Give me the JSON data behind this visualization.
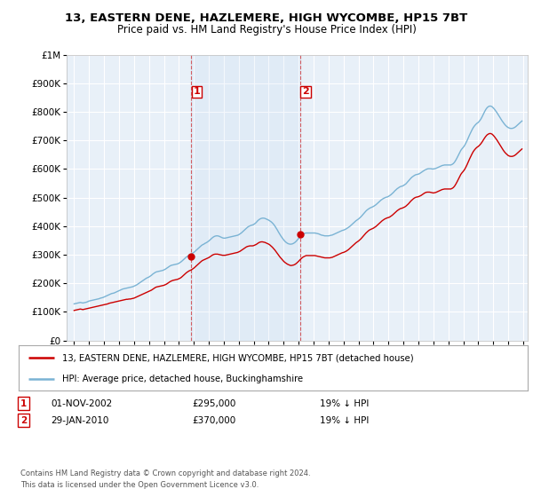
{
  "title": "13, EASTERN DENE, HAZLEMERE, HIGH WYCOMBE, HP15 7BT",
  "subtitle": "Price paid vs. HM Land Registry's House Price Index (HPI)",
  "legend_line1": "13, EASTERN DENE, HAZLEMERE, HIGH WYCOMBE, HP15 7BT (detached house)",
  "legend_line2": "HPI: Average price, detached house, Buckinghamshire",
  "footnote1": "Contains HM Land Registry data © Crown copyright and database right 2024.",
  "footnote2": "This data is licensed under the Open Government Licence v3.0.",
  "transaction1_date": "01-NOV-2002",
  "transaction1_price": "£295,000",
  "transaction1_hpi": "19% ↓ HPI",
  "transaction2_date": "29-JAN-2010",
  "transaction2_price": "£370,000",
  "transaction2_hpi": "19% ↓ HPI",
  "hpi_color": "#7ab3d4",
  "price_color": "#cc0000",
  "vline_color": "#cc0000",
  "background_color": "#ffffff",
  "plot_bg_color": "#e8f0f8",
  "grid_color": "#ffffff",
  "transaction1_year": 2002.833,
  "transaction2_year": 2010.083,
  "transaction1_price_val": 295000,
  "transaction2_price_val": 370000,
  "hpi_x": [
    1995.0,
    1995.083,
    1995.167,
    1995.25,
    1995.333,
    1995.417,
    1995.5,
    1995.583,
    1995.667,
    1995.75,
    1995.833,
    1995.917,
    1996.0,
    1996.083,
    1996.167,
    1996.25,
    1996.333,
    1996.417,
    1996.5,
    1996.583,
    1996.667,
    1996.75,
    1996.833,
    1996.917,
    1997.0,
    1997.083,
    1997.167,
    1997.25,
    1997.333,
    1997.417,
    1997.5,
    1997.583,
    1997.667,
    1997.75,
    1997.833,
    1997.917,
    1998.0,
    1998.083,
    1998.167,
    1998.25,
    1998.333,
    1998.417,
    1998.5,
    1998.583,
    1998.667,
    1998.75,
    1998.833,
    1998.917,
    1999.0,
    1999.083,
    1999.167,
    1999.25,
    1999.333,
    1999.417,
    1999.5,
    1999.583,
    1999.667,
    1999.75,
    1999.833,
    1999.917,
    2000.0,
    2000.083,
    2000.167,
    2000.25,
    2000.333,
    2000.417,
    2000.5,
    2000.583,
    2000.667,
    2000.75,
    2000.833,
    2000.917,
    2001.0,
    2001.083,
    2001.167,
    2001.25,
    2001.333,
    2001.417,
    2001.5,
    2001.583,
    2001.667,
    2001.75,
    2001.833,
    2001.917,
    2002.0,
    2002.083,
    2002.167,
    2002.25,
    2002.333,
    2002.417,
    2002.5,
    2002.583,
    2002.667,
    2002.75,
    2002.833,
    2002.917,
    2003.0,
    2003.083,
    2003.167,
    2003.25,
    2003.333,
    2003.417,
    2003.5,
    2003.583,
    2003.667,
    2003.75,
    2003.833,
    2003.917,
    2004.0,
    2004.083,
    2004.167,
    2004.25,
    2004.333,
    2004.417,
    2004.5,
    2004.583,
    2004.667,
    2004.75,
    2004.833,
    2004.917,
    2005.0,
    2005.083,
    2005.167,
    2005.25,
    2005.333,
    2005.417,
    2005.5,
    2005.583,
    2005.667,
    2005.75,
    2005.833,
    2005.917,
    2006.0,
    2006.083,
    2006.167,
    2006.25,
    2006.333,
    2006.417,
    2006.5,
    2006.583,
    2006.667,
    2006.75,
    2006.833,
    2006.917,
    2007.0,
    2007.083,
    2007.167,
    2007.25,
    2007.333,
    2007.417,
    2007.5,
    2007.583,
    2007.667,
    2007.75,
    2007.833,
    2007.917,
    2008.0,
    2008.083,
    2008.167,
    2008.25,
    2008.333,
    2008.417,
    2008.5,
    2008.583,
    2008.667,
    2008.75,
    2008.833,
    2008.917,
    2009.0,
    2009.083,
    2009.167,
    2009.25,
    2009.333,
    2009.417,
    2009.5,
    2009.583,
    2009.667,
    2009.75,
    2009.833,
    2009.917,
    2010.0,
    2010.083,
    2010.167,
    2010.25,
    2010.333,
    2010.417,
    2010.5,
    2010.583,
    2010.667,
    2010.75,
    2010.833,
    2010.917,
    2011.0,
    2011.083,
    2011.167,
    2011.25,
    2011.333,
    2011.417,
    2011.5,
    2011.583,
    2011.667,
    2011.75,
    2011.833,
    2011.917,
    2012.0,
    2012.083,
    2012.167,
    2012.25,
    2012.333,
    2012.417,
    2012.5,
    2012.583,
    2012.667,
    2012.75,
    2012.833,
    2012.917,
    2013.0,
    2013.083,
    2013.167,
    2013.25,
    2013.333,
    2013.417,
    2013.5,
    2013.583,
    2013.667,
    2013.75,
    2013.833,
    2013.917,
    2014.0,
    2014.083,
    2014.167,
    2014.25,
    2014.333,
    2014.417,
    2014.5,
    2014.583,
    2014.667,
    2014.75,
    2014.833,
    2014.917,
    2015.0,
    2015.083,
    2015.167,
    2015.25,
    2015.333,
    2015.417,
    2015.5,
    2015.583,
    2015.667,
    2015.75,
    2015.833,
    2015.917,
    2016.0,
    2016.083,
    2016.167,
    2016.25,
    2016.333,
    2016.417,
    2016.5,
    2016.583,
    2016.667,
    2016.75,
    2016.833,
    2016.917,
    2017.0,
    2017.083,
    2017.167,
    2017.25,
    2017.333,
    2017.417,
    2017.5,
    2017.583,
    2017.667,
    2017.75,
    2017.833,
    2017.917,
    2018.0,
    2018.083,
    2018.167,
    2018.25,
    2018.333,
    2018.417,
    2018.5,
    2018.583,
    2018.667,
    2018.75,
    2018.833,
    2018.917,
    2019.0,
    2019.083,
    2019.167,
    2019.25,
    2019.333,
    2019.417,
    2019.5,
    2019.583,
    2019.667,
    2019.75,
    2019.833,
    2019.917,
    2020.0,
    2020.083,
    2020.167,
    2020.25,
    2020.333,
    2020.417,
    2020.5,
    2020.583,
    2020.667,
    2020.75,
    2020.833,
    2020.917,
    2021.0,
    2021.083,
    2021.167,
    2021.25,
    2021.333,
    2021.417,
    2021.5,
    2021.583,
    2021.667,
    2021.75,
    2021.833,
    2021.917,
    2022.0,
    2022.083,
    2022.167,
    2022.25,
    2022.333,
    2022.417,
    2022.5,
    2022.583,
    2022.667,
    2022.75,
    2022.833,
    2022.917,
    2023.0,
    2023.083,
    2023.167,
    2023.25,
    2023.333,
    2023.417,
    2023.5,
    2023.583,
    2023.667,
    2023.75,
    2023.833,
    2023.917,
    2024.0,
    2024.083,
    2024.167,
    2024.25,
    2024.333,
    2024.417,
    2024.5,
    2024.583,
    2024.667,
    2024.75,
    2024.833,
    2024.917
  ],
  "hpi_y": [
    128000,
    129000,
    130000,
    131000,
    132000,
    133000,
    132000,
    131000,
    132000,
    133000,
    134000,
    136000,
    138000,
    139000,
    140000,
    141000,
    142000,
    143000,
    144000,
    145000,
    146000,
    148000,
    149000,
    150000,
    152000,
    154000,
    156000,
    158000,
    160000,
    162000,
    164000,
    165000,
    166000,
    168000,
    170000,
    172000,
    174000,
    176000,
    178000,
    180000,
    181000,
    182000,
    183000,
    184000,
    185000,
    186000,
    187000,
    188000,
    190000,
    192000,
    194000,
    197000,
    200000,
    203000,
    206000,
    209000,
    212000,
    215000,
    218000,
    220000,
    222000,
    225000,
    228000,
    232000,
    235000,
    238000,
    240000,
    241000,
    242000,
    243000,
    244000,
    245000,
    247000,
    249000,
    252000,
    255000,
    258000,
    261000,
    263000,
    264000,
    265000,
    266000,
    267000,
    268000,
    270000,
    273000,
    276000,
    280000,
    284000,
    288000,
    292000,
    295000,
    298000,
    300000,
    302000,
    305000,
    308000,
    312000,
    316000,
    320000,
    324000,
    328000,
    332000,
    335000,
    337000,
    340000,
    342000,
    345000,
    348000,
    352000,
    356000,
    360000,
    363000,
    365000,
    366000,
    366000,
    365000,
    363000,
    361000,
    359000,
    358000,
    358000,
    359000,
    360000,
    361000,
    362000,
    363000,
    364000,
    365000,
    366000,
    367000,
    368000,
    370000,
    373000,
    376000,
    380000,
    384000,
    388000,
    392000,
    396000,
    399000,
    401000,
    403000,
    404000,
    406000,
    409000,
    413000,
    418000,
    422000,
    425000,
    427000,
    428000,
    428000,
    427000,
    425000,
    423000,
    421000,
    418000,
    415000,
    411000,
    406000,
    400000,
    393000,
    386000,
    378000,
    371000,
    364000,
    358000,
    352000,
    347000,
    343000,
    340000,
    338000,
    337000,
    337000,
    338000,
    340000,
    343000,
    347000,
    352000,
    357000,
    362000,
    366000,
    370000,
    373000,
    375000,
    376000,
    376000,
    376000,
    376000,
    376000,
    376000,
    376000,
    376000,
    375000,
    374000,
    373000,
    371000,
    369000,
    368000,
    367000,
    366000,
    366000,
    366000,
    366000,
    367000,
    368000,
    369000,
    371000,
    373000,
    375000,
    377000,
    379000,
    381000,
    383000,
    385000,
    386000,
    388000,
    390000,
    393000,
    396000,
    399000,
    403000,
    407000,
    411000,
    415000,
    419000,
    422000,
    425000,
    429000,
    433000,
    438000,
    443000,
    448000,
    453000,
    457000,
    460000,
    463000,
    465000,
    467000,
    469000,
    472000,
    475000,
    479000,
    483000,
    487000,
    491000,
    494000,
    497000,
    499000,
    501000,
    502000,
    504000,
    507000,
    510000,
    514000,
    518000,
    523000,
    527000,
    531000,
    534000,
    537000,
    539000,
    540000,
    542000,
    545000,
    548000,
    553000,
    558000,
    563000,
    568000,
    572000,
    575000,
    578000,
    580000,
    581000,
    582000,
    584000,
    587000,
    590000,
    593000,
    596000,
    598000,
    600000,
    601000,
    601000,
    601000,
    600000,
    600000,
    601000,
    602000,
    604000,
    606000,
    608000,
    610000,
    612000,
    613000,
    614000,
    614000,
    614000,
    614000,
    614000,
    614000,
    616000,
    619000,
    624000,
    631000,
    639000,
    648000,
    657000,
    665000,
    671000,
    676000,
    682000,
    690000,
    699000,
    709000,
    719000,
    728000,
    737000,
    745000,
    751000,
    756000,
    760000,
    763000,
    768000,
    774000,
    782000,
    791000,
    800000,
    808000,
    814000,
    818000,
    820000,
    820000,
    818000,
    814000,
    809000,
    803000,
    797000,
    790000,
    783000,
    776000,
    769000,
    763000,
    757000,
    752000,
    748000,
    745000,
    743000,
    742000,
    742000,
    743000,
    745000,
    748000,
    752000,
    756000,
    760000,
    764000,
    768000
  ],
  "price_x": [
    1995.0,
    1995.083,
    1995.167,
    1995.25,
    1995.333,
    1995.417,
    1995.5,
    1995.583,
    1995.667,
    1995.75,
    1995.833,
    1995.917,
    1996.0,
    1996.083,
    1996.167,
    1996.25,
    1996.333,
    1996.417,
    1996.5,
    1996.583,
    1996.667,
    1996.75,
    1996.833,
    1996.917,
    1997.0,
    1997.083,
    1997.167,
    1997.25,
    1997.333,
    1997.417,
    1997.5,
    1997.583,
    1997.667,
    1997.75,
    1997.833,
    1997.917,
    1998.0,
    1998.083,
    1998.167,
    1998.25,
    1998.333,
    1998.417,
    1998.5,
    1998.583,
    1998.667,
    1998.75,
    1998.833,
    1998.917,
    1999.0,
    1999.083,
    1999.167,
    1999.25,
    1999.333,
    1999.417,
    1999.5,
    1999.583,
    1999.667,
    1999.75,
    1999.833,
    1999.917,
    2000.0,
    2000.083,
    2000.167,
    2000.25,
    2000.333,
    2000.417,
    2000.5,
    2000.583,
    2000.667,
    2000.75,
    2000.833,
    2000.917,
    2001.0,
    2001.083,
    2001.167,
    2001.25,
    2001.333,
    2001.417,
    2001.5,
    2001.583,
    2001.667,
    2001.75,
    2001.833,
    2001.917,
    2002.0,
    2002.083,
    2002.167,
    2002.25,
    2002.333,
    2002.417,
    2002.5,
    2002.583,
    2002.667,
    2002.75,
    2002.833,
    2002.917,
    2003.0,
    2003.083,
    2003.167,
    2003.25,
    2003.333,
    2003.417,
    2003.5,
    2003.583,
    2003.667,
    2003.75,
    2003.833,
    2003.917,
    2004.0,
    2004.083,
    2004.167,
    2004.25,
    2004.333,
    2004.417,
    2004.5,
    2004.583,
    2004.667,
    2004.75,
    2004.833,
    2004.917,
    2005.0,
    2005.083,
    2005.167,
    2005.25,
    2005.333,
    2005.417,
    2005.5,
    2005.583,
    2005.667,
    2005.75,
    2005.833,
    2005.917,
    2006.0,
    2006.083,
    2006.167,
    2006.25,
    2006.333,
    2006.417,
    2006.5,
    2006.583,
    2006.667,
    2006.75,
    2006.833,
    2006.917,
    2007.0,
    2007.083,
    2007.167,
    2007.25,
    2007.333,
    2007.417,
    2007.5,
    2007.583,
    2007.667,
    2007.75,
    2007.833,
    2007.917,
    2008.0,
    2008.083,
    2008.167,
    2008.25,
    2008.333,
    2008.417,
    2008.5,
    2008.583,
    2008.667,
    2008.75,
    2008.833,
    2008.917,
    2009.0,
    2009.083,
    2009.167,
    2009.25,
    2009.333,
    2009.417,
    2009.5,
    2009.583,
    2009.667,
    2009.75,
    2009.833,
    2009.917,
    2010.0,
    2010.083,
    2010.167,
    2010.25,
    2010.333,
    2010.417,
    2010.5,
    2010.583,
    2010.667,
    2010.75,
    2010.833,
    2010.917,
    2011.0,
    2011.083,
    2011.167,
    2011.25,
    2011.333,
    2011.417,
    2011.5,
    2011.583,
    2011.667,
    2011.75,
    2011.833,
    2011.917,
    2012.0,
    2012.083,
    2012.167,
    2012.25,
    2012.333,
    2012.417,
    2012.5,
    2012.583,
    2012.667,
    2012.75,
    2012.833,
    2012.917,
    2013.0,
    2013.083,
    2013.167,
    2013.25,
    2013.333,
    2013.417,
    2013.5,
    2013.583,
    2013.667,
    2013.75,
    2013.833,
    2013.917,
    2014.0,
    2014.083,
    2014.167,
    2014.25,
    2014.333,
    2014.417,
    2014.5,
    2014.583,
    2014.667,
    2014.75,
    2014.833,
    2014.917,
    2015.0,
    2015.083,
    2015.167,
    2015.25,
    2015.333,
    2015.417,
    2015.5,
    2015.583,
    2015.667,
    2015.75,
    2015.833,
    2015.917,
    2016.0,
    2016.083,
    2016.167,
    2016.25,
    2016.333,
    2016.417,
    2016.5,
    2016.583,
    2016.667,
    2016.75,
    2016.833,
    2016.917,
    2017.0,
    2017.083,
    2017.167,
    2017.25,
    2017.333,
    2017.417,
    2017.5,
    2017.583,
    2017.667,
    2017.75,
    2017.833,
    2017.917,
    2018.0,
    2018.083,
    2018.167,
    2018.25,
    2018.333,
    2018.417,
    2018.5,
    2018.583,
    2018.667,
    2018.75,
    2018.833,
    2018.917,
    2019.0,
    2019.083,
    2019.167,
    2019.25,
    2019.333,
    2019.417,
    2019.5,
    2019.583,
    2019.667,
    2019.75,
    2019.833,
    2019.917,
    2020.0,
    2020.083,
    2020.167,
    2020.25,
    2020.333,
    2020.417,
    2020.5,
    2020.583,
    2020.667,
    2020.75,
    2020.833,
    2020.917,
    2021.0,
    2021.083,
    2021.167,
    2021.25,
    2021.333,
    2021.417,
    2021.5,
    2021.583,
    2021.667,
    2021.75,
    2021.833,
    2021.917,
    2022.0,
    2022.083,
    2022.167,
    2022.25,
    2022.333,
    2022.417,
    2022.5,
    2022.583,
    2022.667,
    2022.75,
    2022.833,
    2022.917,
    2023.0,
    2023.083,
    2023.167,
    2023.25,
    2023.333,
    2023.417,
    2023.5,
    2023.583,
    2023.667,
    2023.75,
    2023.833,
    2023.917,
    2024.0,
    2024.083,
    2024.167,
    2024.25,
    2024.333,
    2024.417,
    2024.5,
    2024.583,
    2024.667,
    2024.75,
    2024.833,
    2024.917
  ],
  "price_y": [
    105000,
    106000,
    107000,
    108000,
    109000,
    110000,
    109000,
    108000,
    109000,
    110000,
    111000,
    112000,
    113000,
    114000,
    115000,
    116000,
    117000,
    118000,
    119000,
    120000,
    121000,
    122000,
    123000,
    124000,
    125000,
    126000,
    127000,
    128000,
    130000,
    131000,
    132000,
    133000,
    134000,
    135000,
    136000,
    137000,
    138000,
    139000,
    140000,
    141000,
    142000,
    143000,
    144000,
    144000,
    145000,
    145000,
    146000,
    147000,
    148000,
    150000,
    152000,
    154000,
    156000,
    158000,
    160000,
    162000,
    164000,
    166000,
    168000,
    170000,
    172000,
    174000,
    176000,
    179000,
    182000,
    185000,
    187000,
    188000,
    189000,
    190000,
    191000,
    192000,
    193000,
    195000,
    197000,
    200000,
    203000,
    206000,
    208000,
    210000,
    211000,
    212000,
    213000,
    214000,
    216000,
    218000,
    221000,
    225000,
    229000,
    233000,
    237000,
    240000,
    243000,
    245000,
    247000,
    250000,
    253000,
    257000,
    261000,
    265000,
    269000,
    273000,
    277000,
    280000,
    282000,
    284000,
    286000,
    288000,
    290000,
    293000,
    296000,
    299000,
    301000,
    302000,
    302000,
    302000,
    301000,
    300000,
    299000,
    298000,
    298000,
    298000,
    299000,
    300000,
    301000,
    302000,
    303000,
    304000,
    305000,
    306000,
    307000,
    308000,
    310000,
    312000,
    315000,
    318000,
    321000,
    324000,
    327000,
    329000,
    330000,
    331000,
    331000,
    331000,
    332000,
    334000,
    336000,
    339000,
    342000,
    344000,
    345000,
    345000,
    344000,
    343000,
    341000,
    339000,
    337000,
    334000,
    330000,
    326000,
    321000,
    316000,
    310000,
    304000,
    298000,
    292000,
    287000,
    282000,
    277000,
    273000,
    270000,
    267000,
    265000,
    263000,
    262000,
    263000,
    264000,
    266000,
    269000,
    273000,
    277000,
    282000,
    286000,
    290000,
    293000,
    295000,
    297000,
    297000,
    297000,
    297000,
    297000,
    297000,
    297000,
    297000,
    296000,
    295000,
    294000,
    293000,
    292000,
    291000,
    290000,
    289000,
    289000,
    289000,
    289000,
    289000,
    290000,
    291000,
    293000,
    295000,
    297000,
    299000,
    301000,
    303000,
    305000,
    307000,
    308000,
    310000,
    312000,
    315000,
    318000,
    322000,
    326000,
    330000,
    334000,
    338000,
    342000,
    345000,
    348000,
    352000,
    356000,
    361000,
    366000,
    371000,
    376000,
    380000,
    384000,
    387000,
    389000,
    391000,
    393000,
    396000,
    399000,
    403000,
    407000,
    411000,
    415000,
    419000,
    422000,
    425000,
    427000,
    429000,
    430000,
    432000,
    435000,
    438000,
    442000,
    446000,
    450000,
    454000,
    457000,
    460000,
    462000,
    463000,
    465000,
    467000,
    470000,
    474000,
    478000,
    483000,
    488000,
    492000,
    496000,
    499000,
    501000,
    502000,
    503000,
    505000,
    507000,
    510000,
    513000,
    516000,
    518000,
    519000,
    519000,
    519000,
    518000,
    517000,
    516000,
    517000,
    518000,
    520000,
    522000,
    524000,
    526000,
    528000,
    529000,
    530000,
    530000,
    530000,
    530000,
    530000,
    530000,
    532000,
    535000,
    540000,
    547000,
    555000,
    564000,
    573000,
    581000,
    587000,
    592000,
    598000,
    606000,
    615000,
    625000,
    635000,
    644000,
    653000,
    661000,
    667000,
    672000,
    676000,
    679000,
    683000,
    688000,
    694000,
    701000,
    708000,
    714000,
    719000,
    722000,
    724000,
    724000,
    722000,
    718000,
    713000,
    707000,
    701000,
    694000,
    687000,
    680000,
    673000,
    666000,
    660000,
    655000,
    651000,
    647000,
    645000,
    644000,
    644000,
    645000,
    647000,
    650000,
    654000,
    658000,
    662000,
    666000,
    670000
  ]
}
